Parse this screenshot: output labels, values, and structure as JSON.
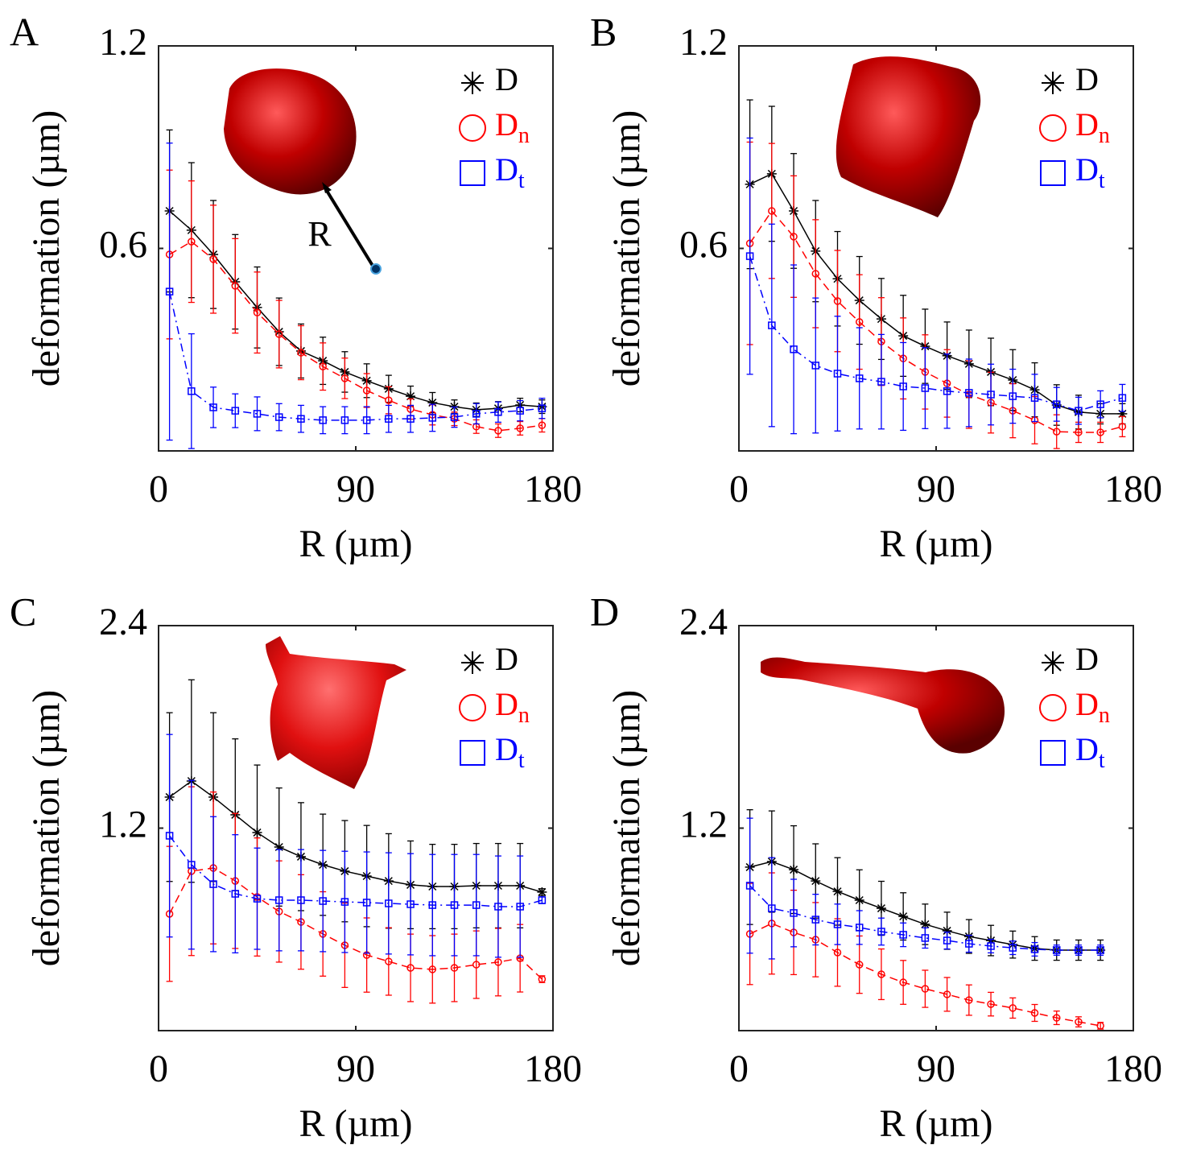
{
  "chart_data": [
    {
      "type": "line",
      "label": "A",
      "xlabel": "R (µm)",
      "ylabel": "deformation (µm)",
      "annotation": "R",
      "xlim": [
        0,
        180
      ],
      "ylim": [
        0,
        1.2
      ],
      "xticks": [
        0,
        90,
        180
      ],
      "yticks": [
        0.6,
        1.2
      ],
      "legend": "upper right",
      "x": [
        5,
        15,
        25,
        35,
        45,
        55,
        65,
        75,
        85,
        95,
        105,
        115,
        125,
        135,
        145,
        155,
        165,
        175
      ],
      "series": [
        {
          "name": "D",
          "color": "#000000",
          "marker": "asterisk",
          "linestyle": "solid",
          "values": [
            0.711,
            0.654,
            0.582,
            0.501,
            0.425,
            0.353,
            0.296,
            0.267,
            0.234,
            0.208,
            0.184,
            0.162,
            0.143,
            0.131,
            0.122,
            0.126,
            0.136,
            0.131
          ],
          "errors": [
            0.24,
            0.2,
            0.16,
            0.14,
            0.12,
            0.1,
            0.08,
            0.07,
            0.06,
            0.05,
            0.04,
            0.03,
            0.03,
            0.02,
            0.02,
            0.02,
            0.02,
            0.02
          ]
        },
        {
          "name": "D",
          "subscript": "n",
          "color": "#ff0000",
          "marker": "circle",
          "linestyle": "dashed",
          "values": [
            0.582,
            0.62,
            0.568,
            0.489,
            0.41,
            0.346,
            0.291,
            0.25,
            0.215,
            0.179,
            0.15,
            0.124,
            0.107,
            0.095,
            0.072,
            0.06,
            0.067,
            0.076
          ],
          "errors": [
            0.25,
            0.18,
            0.16,
            0.14,
            0.12,
            0.1,
            0.08,
            0.07,
            0.06,
            0.05,
            0.04,
            0.03,
            0.03,
            0.02,
            0.02,
            0.02,
            0.02,
            0.02
          ]
        },
        {
          "name": "D",
          "subscript": "t",
          "color": "#0000ff",
          "marker": "square",
          "linestyle": "dashdot",
          "values": [
            0.472,
            0.177,
            0.129,
            0.119,
            0.11,
            0.1,
            0.095,
            0.091,
            0.091,
            0.091,
            0.095,
            0.095,
            0.098,
            0.1,
            0.11,
            0.115,
            0.119,
            0.126
          ],
          "errors": [
            0.44,
            0.17,
            0.06,
            0.05,
            0.05,
            0.04,
            0.04,
            0.04,
            0.04,
            0.04,
            0.04,
            0.04,
            0.04,
            0.03,
            0.03,
            0.03,
            0.03,
            0.03
          ]
        }
      ]
    },
    {
      "type": "line",
      "label": "B",
      "xlabel": "R (µm)",
      "ylabel": "deformation (µm)",
      "xlim": [
        0,
        180
      ],
      "ylim": [
        0,
        1.2
      ],
      "xticks": [
        0,
        90,
        180
      ],
      "yticks": [
        0.6,
        1.2
      ],
      "legend": "upper right",
      "x": [
        5,
        15,
        25,
        35,
        45,
        55,
        65,
        75,
        85,
        95,
        105,
        115,
        125,
        135,
        145,
        155,
        165,
        175
      ],
      "series": [
        {
          "name": "D",
          "color": "#000000",
          "marker": "asterisk",
          "linestyle": "solid",
          "values": [
            0.79,
            0.821,
            0.711,
            0.592,
            0.51,
            0.446,
            0.391,
            0.341,
            0.31,
            0.282,
            0.258,
            0.234,
            0.21,
            0.181,
            0.136,
            0.115,
            0.11,
            0.11
          ],
          "errors": [
            0.25,
            0.2,
            0.17,
            0.15,
            0.14,
            0.13,
            0.12,
            0.12,
            0.11,
            0.1,
            0.1,
            0.1,
            0.09,
            0.08,
            0.06,
            0.05,
            0.03,
            0.03
          ]
        },
        {
          "name": "D",
          "subscript": "n",
          "color": "#ff0000",
          "marker": "circle",
          "linestyle": "dashed",
          "values": [
            0.615,
            0.711,
            0.635,
            0.525,
            0.444,
            0.382,
            0.324,
            0.274,
            0.234,
            0.2,
            0.167,
            0.143,
            0.119,
            0.091,
            0.057,
            0.055,
            0.055,
            0.072
          ],
          "errors": [
            0.3,
            0.2,
            0.18,
            0.16,
            0.15,
            0.14,
            0.13,
            0.12,
            0.11,
            0.1,
            0.1,
            0.09,
            0.08,
            0.07,
            0.05,
            0.03,
            0.03,
            0.03
          ]
        },
        {
          "name": "D",
          "subscript": "t",
          "color": "#0000ff",
          "marker": "square",
          "linestyle": "dashdot",
          "values": [
            0.577,
            0.372,
            0.301,
            0.253,
            0.229,
            0.215,
            0.205,
            0.191,
            0.186,
            0.177,
            0.172,
            0.167,
            0.162,
            0.157,
            0.138,
            0.119,
            0.138,
            0.157
          ],
          "errors": [
            0.35,
            0.3,
            0.25,
            0.2,
            0.17,
            0.15,
            0.14,
            0.13,
            0.12,
            0.11,
            0.1,
            0.09,
            0.08,
            0.07,
            0.05,
            0.04,
            0.04,
            0.04
          ]
        }
      ]
    },
    {
      "type": "line",
      "label": "C",
      "xlabel": "R (µm)",
      "ylabel": "deformation (µm)",
      "xlim": [
        0,
        180
      ],
      "ylim": [
        0,
        2.4
      ],
      "xticks": [
        0,
        90,
        180
      ],
      "yticks": [
        1.2,
        2.4
      ],
      "legend": "upper right",
      "x": [
        5,
        15,
        25,
        35,
        45,
        55,
        65,
        75,
        85,
        95,
        105,
        115,
        125,
        135,
        145,
        155,
        165,
        175
      ],
      "series": [
        {
          "name": "D",
          "color": "#000000",
          "marker": "asterisk",
          "linestyle": "solid",
          "values": [
            1.384,
            1.479,
            1.384,
            1.279,
            1.174,
            1.088,
            1.031,
            0.983,
            0.945,
            0.916,
            0.887,
            0.864,
            0.854,
            0.854,
            0.859,
            0.859,
            0.859,
            0.821
          ],
          "errors": [
            0.5,
            0.6,
            0.5,
            0.45,
            0.4,
            0.35,
            0.32,
            0.3,
            0.3,
            0.3,
            0.28,
            0.26,
            0.25,
            0.25,
            0.25,
            0.25,
            0.25,
            0.02
          ]
        },
        {
          "name": "D",
          "subscript": "n",
          "color": "#ff0000",
          "marker": "circle",
          "linestyle": "dashed",
          "values": [
            0.692,
            0.945,
            0.964,
            0.887,
            0.792,
            0.706,
            0.644,
            0.573,
            0.506,
            0.448,
            0.41,
            0.372,
            0.363,
            0.372,
            0.391,
            0.406,
            0.429,
            0.305
          ],
          "errors": [
            0.4,
            0.5,
            0.45,
            0.4,
            0.35,
            0.3,
            0.28,
            0.25,
            0.25,
            0.22,
            0.2,
            0.2,
            0.2,
            0.2,
            0.2,
            0.2,
            0.2,
            0.02
          ]
        },
        {
          "name": "D",
          "subscript": "t",
          "color": "#0000ff",
          "marker": "square",
          "linestyle": "dashdot",
          "values": [
            1.155,
            0.983,
            0.868,
            0.811,
            0.782,
            0.773,
            0.773,
            0.768,
            0.763,
            0.759,
            0.754,
            0.749,
            0.744,
            0.744,
            0.744,
            0.735,
            0.735,
            0.773
          ],
          "errors": [
            0.6,
            0.5,
            0.4,
            0.35,
            0.3,
            0.3,
            0.3,
            0.3,
            0.3,
            0.3,
            0.3,
            0.3,
            0.3,
            0.3,
            0.3,
            0.3,
            0.3,
            0.02
          ]
        }
      ]
    },
    {
      "type": "line",
      "label": "D",
      "xlabel": "R (µm)",
      "ylabel": "deformation (µm)",
      "xlim": [
        0,
        180
      ],
      "ylim": [
        0,
        2.4
      ],
      "xticks": [
        0,
        90,
        180
      ],
      "yticks": [
        1.2,
        2.4
      ],
      "legend": "upper right",
      "x": [
        5,
        15,
        25,
        35,
        45,
        55,
        65,
        75,
        85,
        95,
        105,
        115,
        125,
        135,
        145,
        155,
        165
      ],
      "series": [
        {
          "name": "D",
          "color": "#000000",
          "marker": "asterisk",
          "linestyle": "solid",
          "values": [
            0.969,
            1.002,
            0.954,
            0.887,
            0.825,
            0.773,
            0.725,
            0.677,
            0.63,
            0.592,
            0.558,
            0.534,
            0.51,
            0.487,
            0.477,
            0.477,
            0.477
          ],
          "errors": [
            0.34,
            0.3,
            0.26,
            0.22,
            0.2,
            0.18,
            0.16,
            0.14,
            0.12,
            0.11,
            0.1,
            0.09,
            0.08,
            0.07,
            0.06,
            0.06,
            0.06
          ]
        },
        {
          "name": "D",
          "subscript": "n",
          "color": "#ff0000",
          "marker": "circle",
          "linestyle": "dashed",
          "values": [
            0.573,
            0.635,
            0.582,
            0.539,
            0.463,
            0.391,
            0.334,
            0.286,
            0.248,
            0.215,
            0.181,
            0.157,
            0.134,
            0.105,
            0.076,
            0.052,
            0.029
          ],
          "errors": [
            0.3,
            0.3,
            0.25,
            0.22,
            0.2,
            0.17,
            0.15,
            0.13,
            0.11,
            0.1,
            0.09,
            0.07,
            0.06,
            0.05,
            0.04,
            0.03,
            0.02
          ]
        },
        {
          "name": "D",
          "subscript": "t",
          "color": "#0000ff",
          "marker": "square",
          "linestyle": "dashdot",
          "values": [
            0.859,
            0.725,
            0.697,
            0.658,
            0.63,
            0.611,
            0.587,
            0.568,
            0.549,
            0.534,
            0.515,
            0.501,
            0.491,
            0.482,
            0.477,
            0.477,
            0.477
          ],
          "errors": [
            0.4,
            0.3,
            0.2,
            0.15,
            0.12,
            0.1,
            0.08,
            0.07,
            0.06,
            0.05,
            0.05,
            0.04,
            0.04,
            0.04,
            0.03,
            0.03,
            0.03
          ]
        }
      ]
    }
  ]
}
